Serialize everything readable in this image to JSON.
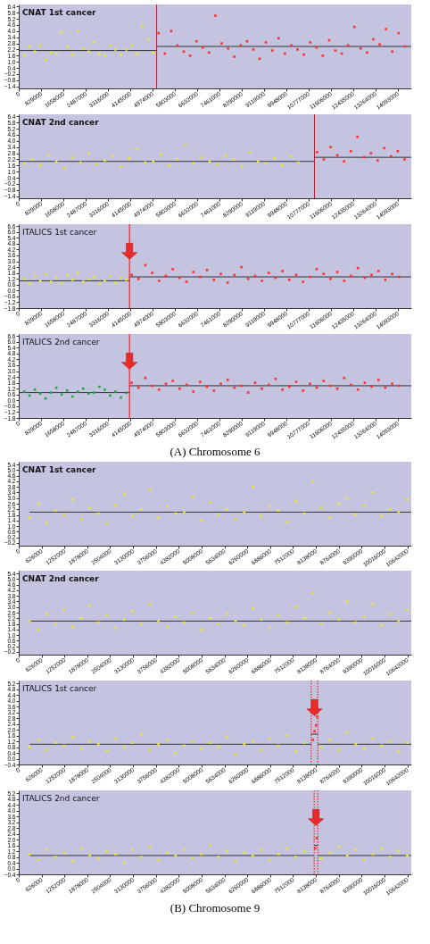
{
  "chart_data": [
    {
      "type": "scatter",
      "title": "CNAT 1st cancer",
      "marker": "square",
      "xlim": [
        0,
        14600000
      ],
      "ylim": [
        -1.6,
        6.6
      ],
      "xticks": [
        0,
        829000,
        1658000,
        2487000,
        3316000,
        4145000,
        4974000,
        5803000,
        6632000,
        7461000,
        8290000,
        9119000,
        9948000,
        10777000,
        11606000,
        12435000,
        13264000,
        14093000
      ],
      "yticks": [
        -1.4,
        -0.8,
        -0.2,
        0.4,
        {
          "value": 1,
          "label": "1.0"
        },
        1.6,
        2.2,
        2.8,
        3.4,
        {
          "value": 4,
          "label": "4.0"
        },
        4.6,
        5.2,
        5.8,
        6.4
      ],
      "series": [
        {
          "color": "#e8e83c",
          "x": [
            200000,
            400000,
            600000,
            800000,
            1000000,
            1200000,
            1400000,
            1600000,
            1800000,
            2000000,
            2200000,
            2400000,
            2600000,
            2800000,
            3000000,
            3200000,
            3400000,
            3600000,
            3800000,
            4000000,
            4200000,
            4400000,
            4600000,
            4800000,
            5000000
          ],
          "values": [
            1.6,
            2.5,
            2.0,
            2.6,
            1.2,
            1.9,
            1.8,
            3.9,
            2.5,
            1.7,
            4.0,
            2.3,
            2.0,
            2.9,
            1.8,
            1.6,
            2.6,
            2.2,
            1.7,
            2.2,
            2.6,
            1.8,
            4.5,
            3.2,
            1.9
          ]
        },
        {
          "color": "#ff3030",
          "x": [
            5200000,
            5435000,
            5670000,
            5905000,
            6140000,
            6375000,
            6610000,
            6845000,
            7080000,
            7315000,
            7550000,
            7785000,
            8020000,
            8255000,
            8490000,
            8725000,
            8960000,
            9195000,
            9430000,
            9665000,
            9900000,
            10135000,
            10370000,
            10605000,
            10840000,
            11075000,
            11310000,
            11545000,
            11780000,
            12015000,
            12250000,
            12485000,
            12720000,
            12955000,
            13190000,
            13425000,
            13660000,
            13895000,
            14130000,
            14365000
          ],
          "values": [
            3.8,
            1.8,
            4.0,
            2.6,
            2.0,
            1.6,
            3.0,
            2.4,
            1.9,
            5.5,
            2.8,
            2.3,
            1.5,
            2.6,
            3.0,
            2.2,
            1.3,
            2.9,
            2.1,
            3.3,
            1.8,
            2.6,
            2.2,
            1.7,
            2.9,
            2.4,
            1.6,
            3.1,
            2.1,
            1.8,
            2.6,
            4.4,
            2.3,
            1.9,
            3.2,
            2.7,
            4.2,
            2.0,
            3.8,
            2.5
          ]
        },
        {
          "type": "line",
          "marker": "none",
          "color": "#333333",
          "x": [
            0,
            5130000
          ],
          "values": [
            2.1,
            2.1
          ]
        },
        {
          "type": "line",
          "marker": "none",
          "color": "#333333",
          "x": [
            5130000,
            14600000
          ],
          "values": [
            2.5,
            2.5
          ]
        }
      ],
      "ref_lines": [
        {
          "axis": "x",
          "value": 5130000,
          "color": "#ff0000"
        }
      ]
    },
    {
      "type": "scatter",
      "title": "CNAT 2nd cancer",
      "marker": "square",
      "xlim": [
        0,
        14600000
      ],
      "ylim": [
        -1.6,
        6.6
      ],
      "xticks": [
        0,
        829000,
        1658000,
        2487000,
        3316000,
        4145000,
        4974000,
        5803000,
        6632000,
        7461000,
        8290000,
        9119000,
        9948000,
        10777000,
        11606000,
        12435000,
        13264000,
        14093000
      ],
      "yticks": [
        -1.4,
        -0.8,
        -0.2,
        0.4,
        {
          "value": 1,
          "label": "1.0"
        },
        1.6,
        2.2,
        2.8,
        3.4,
        {
          "value": 4,
          "label": "4.0"
        },
        4.6,
        5.2,
        5.8,
        6.4
      ],
      "series": [
        {
          "color": "#e8e83c",
          "x": [
            200000,
            500000,
            800000,
            1100000,
            1400000,
            1700000,
            2000000,
            2300000,
            2600000,
            2900000,
            3200000,
            3500000,
            3800000,
            4100000,
            4400000,
            4700000,
            5000000,
            5300000,
            5600000,
            5900000,
            6200000,
            6500000,
            6800000,
            7100000,
            7400000,
            7700000,
            8000000,
            8300000,
            8600000,
            8900000,
            9200000,
            9500000,
            9800000,
            10100000,
            10400000
          ],
          "values": [
            1.8,
            2.2,
            1.6,
            2.6,
            2.0,
            1.4,
            2.4,
            1.9,
            2.8,
            1.7,
            2.1,
            2.5,
            1.5,
            2.3,
            3.2,
            1.9,
            2.0,
            2.7,
            1.6,
            2.2,
            3.6,
            1.8,
            2.4,
            2.0,
            1.7,
            2.6,
            2.2,
            1.5,
            2.9,
            2.0,
            1.8,
            2.3,
            1.6,
            2.5,
            1.9
          ]
        },
        {
          "color": "#ff3030",
          "x": [
            11100000,
            11350000,
            11600000,
            11850000,
            12100000,
            12350000,
            12600000,
            12850000,
            13100000,
            13350000,
            13600000,
            13850000,
            14100000,
            14350000
          ],
          "values": [
            2.9,
            2.2,
            3.4,
            2.6,
            2.0,
            3.0,
            4.4,
            2.4,
            2.8,
            2.1,
            3.3,
            2.5,
            3.0,
            2.2
          ]
        },
        {
          "type": "line",
          "marker": "none",
          "color": "#333333",
          "x": [
            0,
            11000000
          ],
          "values": [
            2.0,
            2.0
          ]
        },
        {
          "type": "line",
          "marker": "none",
          "color": "#333333",
          "x": [
            11000000,
            14600000
          ],
          "values": [
            2.4,
            2.4
          ]
        }
      ],
      "ref_lines": [
        {
          "axis": "x",
          "value": 11000000,
          "color": "#ff0000"
        }
      ]
    },
    {
      "type": "scatter",
      "title": "ITALICS 1st cancer",
      "marker": "square",
      "xlim": [
        0,
        14600000
      ],
      "ylim": [
        -1.8,
        6.8
      ],
      "xticks": [
        0,
        829000,
        1658000,
        2487000,
        3316000,
        4145000,
        4974000,
        5803000,
        6632000,
        7461000,
        8290000,
        9119000,
        9948000,
        10777000,
        11606000,
        12435000,
        13264000,
        14093000
      ],
      "yticks": [
        -1.8,
        -1.2,
        -0.6,
        {
          "value": 0,
          "label": "0.0"
        },
        0.6,
        1.2,
        1.8,
        2.4,
        {
          "value": 3,
          "label": "3.0"
        },
        3.6,
        4.2,
        4.8,
        5.4,
        {
          "value": 6,
          "label": "6.0"
        },
        6.6
      ],
      "series": [
        {
          "color": "#e8e83c",
          "x": [
            200000,
            400000,
            600000,
            800000,
            1000000,
            1200000,
            1400000,
            1600000,
            1800000,
            2000000,
            2200000,
            2400000,
            2600000,
            2800000,
            3000000,
            3200000,
            3400000,
            3600000,
            3800000,
            4000000
          ],
          "values": [
            1.2,
            0.7,
            1.5,
            1.0,
            1.7,
            0.9,
            1.3,
            0.8,
            1.6,
            1.1,
            1.8,
            0.9,
            1.2,
            1.4,
            0.7,
            1.0,
            1.5,
            0.8,
            1.3,
            1.1
          ]
        },
        {
          "color": "#ff3030",
          "x": [
            4200000,
            4455000,
            4710000,
            4965000,
            5220000,
            5475000,
            5730000,
            5985000,
            6240000,
            6495000,
            6750000,
            7005000,
            7260000,
            7515000,
            7770000,
            8025000,
            8280000,
            8535000,
            8790000,
            9045000,
            9300000,
            9555000,
            9810000,
            10065000,
            10320000,
            10575000,
            10830000,
            11085000,
            11340000,
            11595000,
            11850000,
            12105000,
            12360000,
            12615000,
            12870000,
            13125000,
            13380000,
            13635000,
            13890000,
            14145000
          ],
          "values": [
            1.6,
            1.2,
            2.6,
            1.8,
            1.0,
            1.5,
            2.2,
            1.3,
            0.9,
            1.9,
            1.4,
            2.1,
            1.1,
            1.7,
            0.8,
            1.6,
            2.4,
            1.2,
            1.5,
            1.0,
            1.8,
            1.3,
            2.0,
            1.1,
            1.6,
            0.9,
            1.4,
            2.2,
            1.7,
            1.2,
            1.9,
            1.0,
            1.5,
            2.3,
            1.3,
            1.6,
            2.0,
            1.1,
            1.7,
            1.4
          ]
        },
        {
          "type": "line",
          "marker": "none",
          "color": "#333333",
          "x": [
            0,
            4120000
          ],
          "values": [
            1.0,
            1.0
          ]
        },
        {
          "type": "line",
          "marker": "none",
          "color": "#333333",
          "x": [
            4120000,
            14600000
          ],
          "values": [
            1.4,
            1.4
          ]
        }
      ],
      "ref_lines": [
        {
          "axis": "x",
          "value": 4120000,
          "color": "#ff0000"
        }
      ]
    },
    {
      "type": "scatter",
      "title": "ITALICS 2nd cancer",
      "marker": "square",
      "xlim": [
        0,
        14600000
      ],
      "ylim": [
        -1.8,
        6.8
      ],
      "xticks": [
        0,
        829000,
        1658000,
        2487000,
        3316000,
        4145000,
        4974000,
        5803000,
        6632000,
        7461000,
        8290000,
        9119000,
        9948000,
        10777000,
        11606000,
        12435000,
        13264000,
        14093000
      ],
      "yticks": [
        -1.8,
        -1.2,
        -0.6,
        {
          "value": 0,
          "label": "0.0"
        },
        0.6,
        1.2,
        1.8,
        2.4,
        {
          "value": 3,
          "label": "3.0"
        },
        3.6,
        4.2,
        4.8,
        5.4,
        {
          "value": 6,
          "label": "6.0"
        },
        6.6
      ],
      "series": [
        {
          "color": "#22a844",
          "x": [
            200000,
            400000,
            600000,
            800000,
            1000000,
            1200000,
            1400000,
            1600000,
            1800000,
            2000000,
            2200000,
            2400000,
            2600000,
            2800000,
            3000000,
            3200000,
            3400000,
            3600000,
            3800000,
            4000000
          ],
          "values": [
            0.9,
            0.5,
            1.1,
            0.7,
            0.2,
            0.8,
            1.3,
            0.6,
            1.0,
            0.4,
            0.9,
            1.2,
            0.7,
            0.8,
            1.4,
            1.1,
            0.5,
            0.9,
            0.3,
            0.8
          ]
        },
        {
          "color": "#ff3030",
          "x": [
            4200000,
            4455000,
            4710000,
            4965000,
            5220000,
            5475000,
            5730000,
            5985000,
            6240000,
            6495000,
            6750000,
            7005000,
            7260000,
            7515000,
            7770000,
            8025000,
            8280000,
            8535000,
            8790000,
            9045000,
            9300000,
            9555000,
            9810000,
            10065000,
            10320000,
            10575000,
            10830000,
            11085000,
            11340000,
            11595000,
            11850000,
            12105000,
            12360000,
            12615000,
            12870000,
            13125000,
            13380000,
            13635000,
            13890000,
            14145000
          ],
          "values": [
            1.8,
            1.3,
            2.3,
            1.5,
            1.1,
            1.7,
            2.0,
            1.2,
            1.6,
            0.9,
            1.9,
            1.4,
            1.0,
            1.7,
            2.1,
            1.3,
            1.5,
            0.8,
            1.8,
            1.2,
            1.6,
            2.2,
            1.1,
            1.4,
            1.9,
            1.0,
            1.7,
            1.3,
            2.0,
            1.5,
            1.2,
            2.3,
            1.6,
            1.1,
            1.8,
            1.4,
            2.1,
            1.3,
            1.7,
            1.5
          ]
        },
        {
          "type": "line",
          "marker": "none",
          "color": "#333333",
          "x": [
            0,
            4120000
          ],
          "values": [
            0.8,
            0.8
          ]
        },
        {
          "type": "line",
          "marker": "none",
          "color": "#333333",
          "x": [
            4120000,
            14600000
          ],
          "values": [
            1.5,
            1.5
          ]
        }
      ],
      "ref_lines": [
        {
          "axis": "x",
          "value": 4120000,
          "color": "#ff0000"
        }
      ],
      "annotations": [
        "(A) Chromosome 6"
      ]
    },
    {
      "type": "scatter",
      "title": "CNAT 1st cancer",
      "marker": "square",
      "xlim": [
        0,
        10750000
      ],
      "ylim": [
        -0.4,
        5.6
      ],
      "xticks": [
        0,
        626000,
        1252000,
        1878000,
        2504000,
        3130000,
        3756000,
        4382000,
        5008000,
        5634000,
        6260000,
        6886000,
        7512000,
        8138000,
        8764000,
        9390000,
        10016000,
        10642000
      ],
      "yticks": [
        -0.2,
        0.2,
        0.6,
        {
          "value": 1,
          "label": "1.0"
        },
        1.4,
        1.8,
        2.2,
        2.6,
        {
          "value": 3,
          "label": "3.0"
        },
        3.4,
        3.8,
        4.2,
        4.6,
        {
          "value": 5,
          "label": "5.0"
        },
        5.4
      ],
      "series": [
        {
          "color": "#e8e83c",
          "x": [
            300000,
            535000,
            770000,
            1005000,
            1240000,
            1475000,
            1710000,
            1945000,
            2180000,
            2415000,
            2650000,
            2885000,
            3120000,
            3355000,
            3590000,
            3825000,
            4060000,
            4295000,
            4530000,
            4765000,
            5000000,
            5235000,
            5470000,
            5705000,
            5940000,
            6175000,
            6410000,
            6645000,
            6880000,
            7115000,
            7350000,
            7585000,
            7820000,
            8055000,
            8290000,
            8525000,
            8760000,
            8995000,
            9230000,
            9465000,
            9700000,
            9935000,
            10170000,
            10405000,
            10640000
          ],
          "values": [
            1.6,
            2.6,
            1.2,
            2.1,
            1.8,
            2.9,
            1.5,
            2.3,
            1.9,
            1.2,
            2.5,
            3.3,
            1.7,
            2.2,
            3.6,
            1.6,
            2.4,
            1.9,
            2.0,
            3.1,
            1.4,
            2.7,
            1.8,
            2.2,
            1.5,
            2.0,
            3.8,
            1.7,
            2.4,
            2.1,
            1.3,
            2.8,
            1.9,
            4.2,
            2.3,
            1.6,
            2.6,
            3.0,
            1.8,
            2.5,
            3.4,
            1.7,
            2.2,
            2.0,
            2.9
          ]
        },
        {
          "type": "line",
          "marker": "none",
          "color": "#333333",
          "x": [
            300000,
            10750000
          ],
          "values": [
            2.0,
            2.0
          ]
        }
      ]
    },
    {
      "type": "scatter",
      "title": "CNAT 2nd cancer",
      "marker": "square",
      "xlim": [
        0,
        10750000
      ],
      "ylim": [
        -0.4,
        5.6
      ],
      "xticks": [
        0,
        626000,
        1252000,
        1878000,
        2504000,
        3130000,
        3756000,
        4382000,
        5008000,
        5634000,
        6260000,
        6886000,
        7512000,
        8138000,
        8764000,
        9390000,
        10016000,
        10642000
      ],
      "yticks": [
        -0.2,
        0.2,
        0.6,
        {
          "value": 1,
          "label": "1.0"
        },
        1.4,
        1.8,
        2.2,
        2.6,
        {
          "value": 3,
          "label": "3.0"
        },
        3.4,
        3.8,
        4.2,
        4.6,
        {
          "value": 5,
          "label": "5.0"
        },
        5.4
      ],
      "series": [
        {
          "color": "#e8e83c",
          "x": [
            300000,
            535000,
            770000,
            1005000,
            1240000,
            1475000,
            1710000,
            1945000,
            2180000,
            2415000,
            2650000,
            2885000,
            3120000,
            3355000,
            3590000,
            3825000,
            4060000,
            4295000,
            4530000,
            4765000,
            5000000,
            5235000,
            5470000,
            5705000,
            5940000,
            6175000,
            6410000,
            6645000,
            6880000,
            7115000,
            7350000,
            7585000,
            7820000,
            8055000,
            8290000,
            8525000,
            8760000,
            8995000,
            9230000,
            9465000,
            9700000,
            9935000,
            10170000,
            10405000,
            10640000
          ],
          "values": [
            2.0,
            1.4,
            2.5,
            1.8,
            2.8,
            1.6,
            2.2,
            3.1,
            1.9,
            2.4,
            1.5,
            2.1,
            2.7,
            1.8,
            3.2,
            2.0,
            1.6,
            2.3,
            1.9,
            2.6,
            1.4,
            2.2,
            1.8,
            2.5,
            2.0,
            1.7,
            2.9,
            2.1,
            1.5,
            2.4,
            1.9,
            3.0,
            2.2,
            4.0,
            1.8,
            2.6,
            2.1,
            3.4,
            1.9,
            2.3,
            3.2,
            1.7,
            2.5,
            2.0,
            2.8
          ]
        },
        {
          "type": "line",
          "marker": "none",
          "color": "#333333",
          "x": [
            300000,
            10750000
          ],
          "values": [
            2.0,
            2.0
          ]
        }
      ]
    },
    {
      "type": "scatter",
      "title": "ITALICS 1st cancer",
      "marker": "square",
      "xlim": [
        0,
        10750000
      ],
      "ylim": [
        -0.4,
        5.4
      ],
      "xticks": [
        0,
        626000,
        1252000,
        1878000,
        2504000,
        3130000,
        3756000,
        4382000,
        5008000,
        5634000,
        6260000,
        6886000,
        7512000,
        8138000,
        8764000,
        9390000,
        10016000,
        10642000
      ],
      "yticks": [
        -0.4,
        {
          "value": 0,
          "label": "0.0"
        },
        0.4,
        0.8,
        1.2,
        1.6,
        {
          "value": 2,
          "label": "2.0"
        },
        2.4,
        2.8,
        3.2,
        3.6,
        {
          "value": 4,
          "label": "4.0"
        },
        4.4,
        4.8,
        5.2
      ],
      "series": [
        {
          "color": "#e8e83c",
          "x": [
            300000,
            535000,
            770000,
            1005000,
            1240000,
            1475000,
            1710000,
            1945000,
            2180000,
            2415000,
            2650000,
            2885000,
            3120000,
            3355000,
            3590000,
            3825000,
            4060000,
            4295000,
            4530000,
            4765000,
            5000000,
            5235000,
            5470000,
            5705000,
            5940000,
            6175000,
            6410000,
            6645000,
            6880000,
            7115000,
            7350000,
            7585000,
            7820000,
            8055000,
            8290000,
            8525000,
            8760000,
            8995000,
            9230000,
            9465000,
            9700000,
            9935000,
            10170000,
            10405000,
            10640000
          ],
          "values": [
            0.8,
            1.3,
            0.6,
            1.1,
            0.9,
            1.5,
            0.7,
            1.2,
            1.0,
            0.5,
            1.4,
            0.8,
            1.1,
            1.7,
            0.6,
            1.0,
            1.3,
            0.4,
            0.9,
            1.2,
            0.7,
            1.1,
            0.8,
            1.5,
            0.3,
            1.0,
            1.2,
            0.6,
            1.4,
            0.9,
            1.6,
            0.5,
            1.1,
            null,
            0.8,
            1.3,
            0.6,
            1.8,
            1.0,
            0.7,
            1.4,
            0.9,
            1.2,
            0.5,
            1.1
          ]
        },
        {
          "color": "#ff3030",
          "x": [
            8060000,
            8100000,
            8140000,
            8170000
          ],
          "values": [
            1.3,
            1.9,
            2.3,
            2.9
          ]
        },
        {
          "type": "line",
          "marker": "none",
          "color": "#333333",
          "x": [
            300000,
            8010000
          ],
          "values": [
            1.0,
            1.0
          ]
        },
        {
          "type": "line",
          "marker": "none",
          "color": "#333333",
          "x": [
            8010000,
            8190000
          ],
          "values": [
            1.7,
            1.7
          ]
        },
        {
          "type": "line",
          "marker": "none",
          "color": "#333333",
          "x": [
            8190000,
            10750000
          ],
          "values": [
            1.0,
            1.0
          ]
        }
      ],
      "ref_lines": [
        {
          "axis": "x",
          "value": 8010000,
          "color": "#ff0000",
          "line_style": "dotted"
        },
        {
          "axis": "x",
          "value": 8190000,
          "color": "#ff0000",
          "line_style": "dotted"
        }
      ]
    },
    {
      "type": "scatter",
      "title": "ITALICS 2nd cancer",
      "marker": "square",
      "xlim": [
        0,
        10750000
      ],
      "ylim": [
        -0.4,
        5.4
      ],
      "xticks": [
        0,
        626000,
        1252000,
        1878000,
        2504000,
        3130000,
        3756000,
        4382000,
        5008000,
        5634000,
        6260000,
        6886000,
        7512000,
        8138000,
        8764000,
        9390000,
        10016000,
        10642000
      ],
      "yticks": [
        -0.4,
        {
          "value": 0,
          "label": "0.0"
        },
        0.4,
        0.8,
        1.2,
        1.6,
        {
          "value": 2,
          "label": "2.0"
        },
        2.4,
        2.8,
        3.2,
        3.6,
        {
          "value": 4,
          "label": "4.0"
        },
        4.4,
        4.8,
        5.2
      ],
      "series": [
        {
          "color": "#e8e83c",
          "x": [
            300000,
            535000,
            770000,
            1005000,
            1240000,
            1475000,
            1710000,
            1945000,
            2180000,
            2415000,
            2650000,
            2885000,
            3120000,
            3355000,
            3590000,
            3825000,
            4060000,
            4295000,
            4530000,
            4765000,
            5000000,
            5235000,
            5470000,
            5705000,
            5940000,
            6175000,
            6410000,
            6645000,
            6880000,
            7115000,
            7350000,
            7585000,
            7820000,
            8055000,
            8290000,
            8525000,
            8760000,
            8995000,
            9230000,
            9465000,
            9700000,
            9935000,
            10170000,
            10405000,
            10640000
          ],
          "values": [
            1.0,
            0.6,
            1.3,
            0.8,
            1.1,
            0.5,
            1.4,
            0.9,
            0.7,
            1.2,
            1.0,
            0.4,
            1.3,
            0.8,
            1.5,
            0.6,
            1.1,
            0.9,
            1.3,
            0.7,
            1.0,
            1.6,
            0.8,
            1.2,
            0.5,
            1.1,
            0.9,
            1.3,
            0.6,
            1.0,
            1.4,
            0.8,
            1.2,
            null,
            0.7,
            1.1,
            1.5,
            0.9,
            1.3,
            0.6,
            1.0,
            1.4,
            0.8,
            1.2,
            0.9
          ]
        },
        {
          "color": "#ff3030",
          "x": [
            8120000,
            8160000
          ],
          "values": [
            1.4,
            2.1
          ]
        },
        {
          "type": "line",
          "marker": "none",
          "color": "#333333",
          "x": [
            300000,
            8090000
          ],
          "values": [
            0.9,
            0.9
          ]
        },
        {
          "type": "line",
          "marker": "none",
          "color": "#333333",
          "x": [
            8090000,
            8190000
          ],
          "values": [
            1.6,
            1.6
          ]
        },
        {
          "type": "line",
          "marker": "none",
          "color": "#333333",
          "x": [
            8190000,
            10750000
          ],
          "values": [
            0.9,
            0.9
          ]
        }
      ],
      "ref_lines": [
        {
          "axis": "x",
          "value": 8090000,
          "color": "#ff0000",
          "line_style": "dotted"
        },
        {
          "axis": "x",
          "value": 8190000,
          "color": "#ff0000",
          "line_style": "dotted"
        }
      ],
      "annotations": [
        "(B) Chromosome 9"
      ]
    }
  ]
}
